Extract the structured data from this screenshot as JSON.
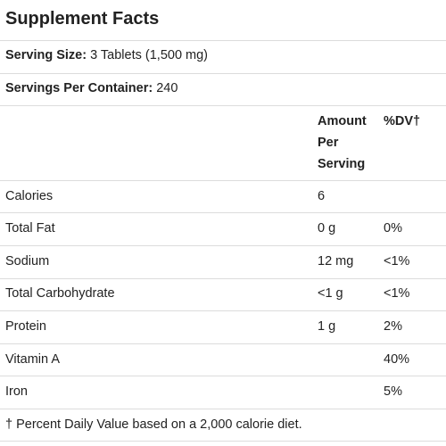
{
  "title": "Supplement Facts",
  "serving_size": {
    "label": "Serving Size:",
    "value": "3 Tablets (1,500 mg)"
  },
  "servings_per_container": {
    "label": "Servings Per Container:",
    "value": "240"
  },
  "columns": {
    "amount_line1": "Amount",
    "amount_line2": "Per",
    "amount_line3": "Serving",
    "dv": "%DV†"
  },
  "rows": [
    {
      "name": "Calories",
      "amount": "6",
      "dv": ""
    },
    {
      "name": "Total Fat",
      "amount": "0 g",
      "dv": "0%"
    },
    {
      "name": "Sodium",
      "amount": "12 mg",
      "dv": "<1%"
    },
    {
      "name": "Total Carbohydrate",
      "amount": "<1 g",
      "dv": "<1%"
    },
    {
      "name": "Protein",
      "amount": "1 g",
      "dv": "2%"
    },
    {
      "name": "Vitamin A",
      "amount": "",
      "dv": "40%"
    },
    {
      "name": "Iron",
      "amount": "",
      "dv": "5%"
    }
  ],
  "footnote": "† Percent Daily Value based on a 2,000 calorie diet."
}
